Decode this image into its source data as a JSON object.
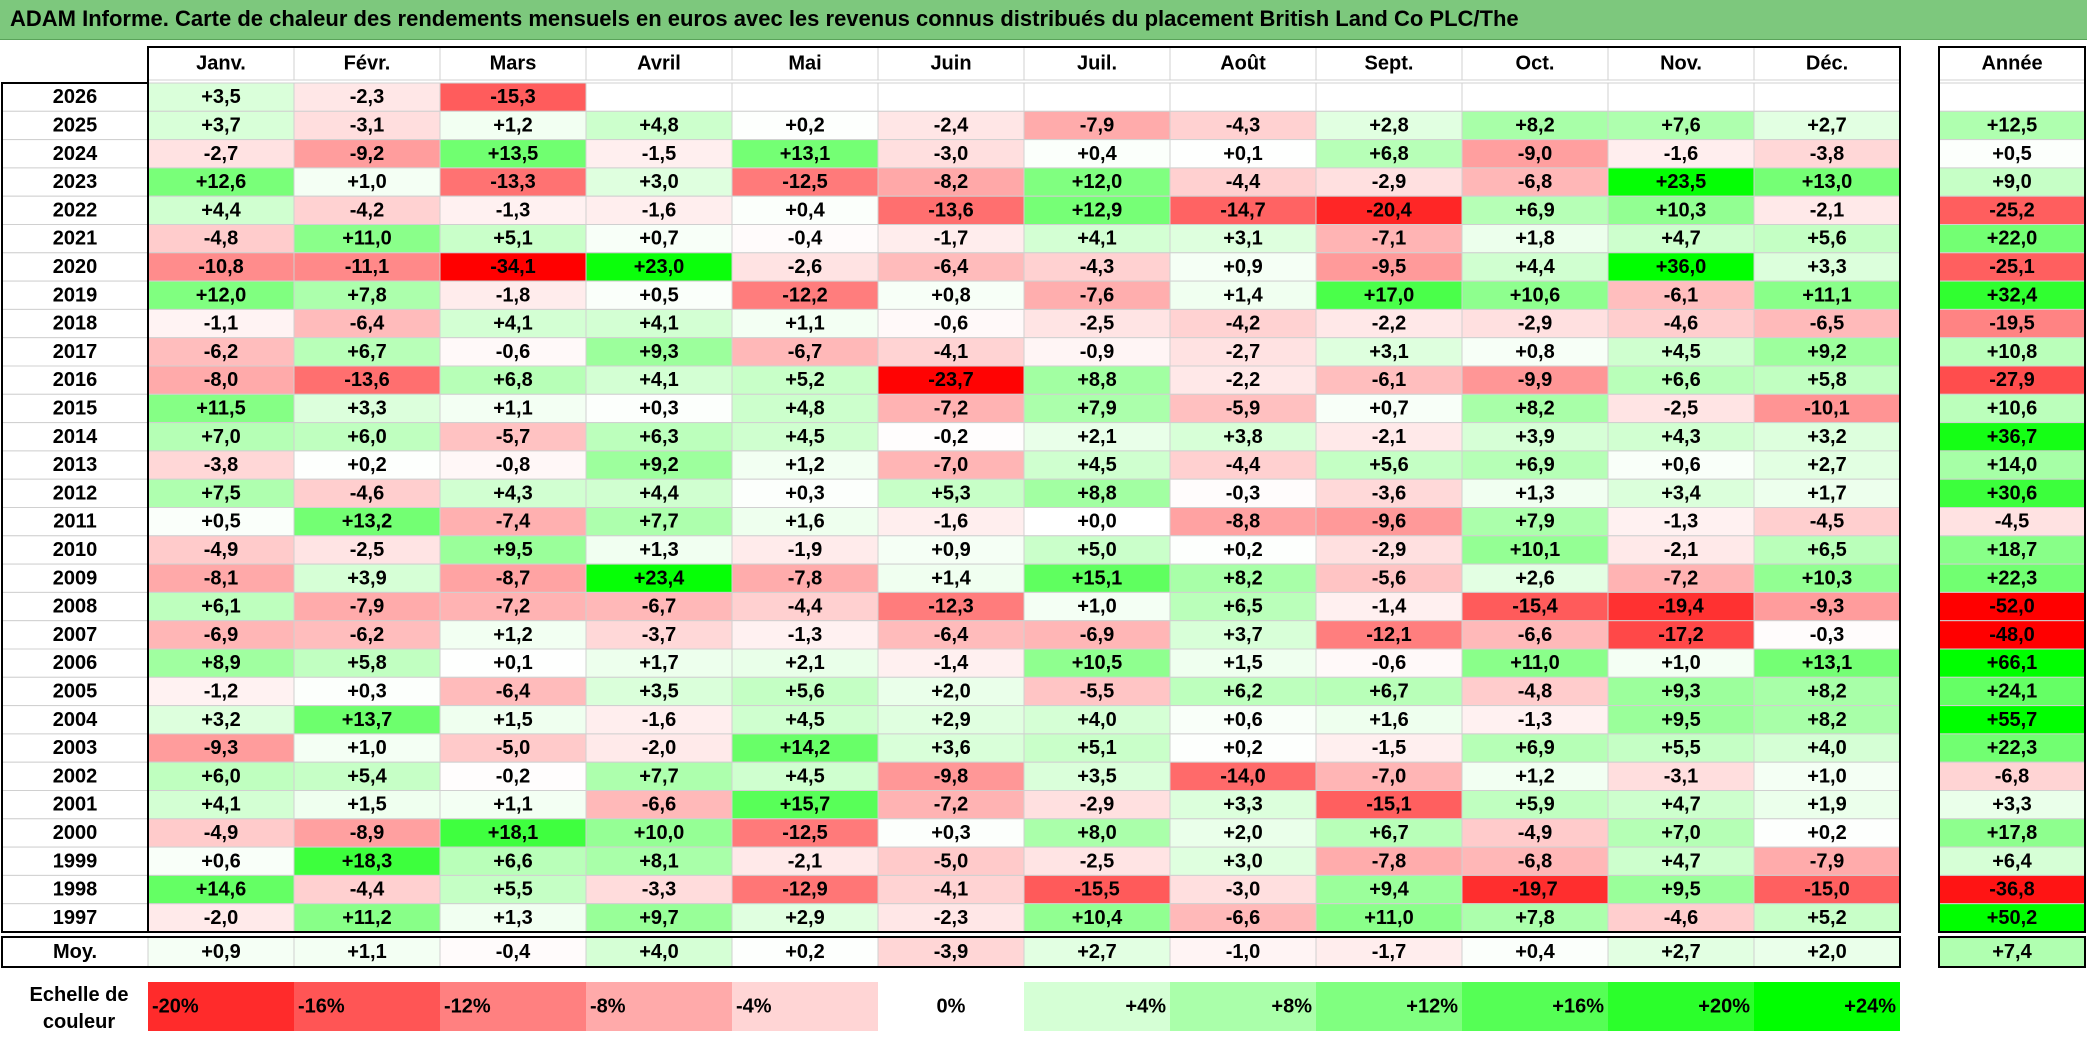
{
  "title": "ADAM Informe. Carte de chaleur des rendements mensuels en euros avec les revenus connus distribués du placement British Land Co PLC/The",
  "chart_data": {
    "type": "heatmap",
    "months": [
      "Janv.",
      "Févr.",
      "Mars",
      "Avril",
      "Mai",
      "Juin",
      "Juil.",
      "Août",
      "Sept.",
      "Oct.",
      "Nov.",
      "Déc."
    ],
    "year_header": "Année",
    "rows": [
      {
        "year": "2026",
        "values": [
          "+3,5",
          "-2,3",
          "-15,3",
          "",
          "",
          "",
          "",
          "",
          "",
          "",
          "",
          ""
        ],
        "annual": ""
      },
      {
        "year": "2025",
        "values": [
          "+3,7",
          "-3,1",
          "+1,2",
          "+4,8",
          "+0,2",
          "-2,4",
          "-7,9",
          "-4,3",
          "+2,8",
          "+8,2",
          "+7,6",
          "+2,7"
        ],
        "annual": "+12,5"
      },
      {
        "year": "2024",
        "values": [
          "-2,7",
          "-9,2",
          "+13,5",
          "-1,5",
          "+13,1",
          "-3,0",
          "+0,4",
          "+0,1",
          "+6,8",
          "-9,0",
          "-1,6",
          "-3,8"
        ],
        "annual": "+0,5"
      },
      {
        "year": "2023",
        "values": [
          "+12,6",
          "+1,0",
          "-13,3",
          "+3,0",
          "-12,5",
          "-8,2",
          "+12,0",
          "-4,4",
          "-2,9",
          "-6,8",
          "+23,5",
          "+13,0"
        ],
        "annual": "+9,0"
      },
      {
        "year": "2022",
        "values": [
          "+4,4",
          "-4,2",
          "-1,3",
          "-1,6",
          "+0,4",
          "-13,6",
          "+12,9",
          "-14,7",
          "-20,4",
          "+6,9",
          "+10,3",
          "-2,1"
        ],
        "annual": "-25,2"
      },
      {
        "year": "2021",
        "values": [
          "-4,8",
          "+11,0",
          "+5,1",
          "+0,7",
          "-0,4",
          "-1,7",
          "+4,1",
          "+3,1",
          "-7,1",
          "+1,8",
          "+4,7",
          "+5,6"
        ],
        "annual": "+22,0"
      },
      {
        "year": "2020",
        "values": [
          "-10,8",
          "-11,1",
          "-34,1",
          "+23,0",
          "-2,6",
          "-6,4",
          "-4,3",
          "+0,9",
          "-9,5",
          "+4,4",
          "+36,0",
          "+3,3"
        ],
        "annual": "-25,1"
      },
      {
        "year": "2019",
        "values": [
          "+12,0",
          "+7,8",
          "-1,8",
          "+0,5",
          "-12,2",
          "+0,8",
          "-7,6",
          "+1,4",
          "+17,0",
          "+10,6",
          "-6,1",
          "+11,1"
        ],
        "annual": "+32,4"
      },
      {
        "year": "2018",
        "values": [
          "-1,1",
          "-6,4",
          "+4,1",
          "+4,1",
          "+1,1",
          "-0,6",
          "-2,5",
          "-4,2",
          "-2,2",
          "-2,9",
          "-4,6",
          "-6,5"
        ],
        "annual": "-19,5"
      },
      {
        "year": "2017",
        "values": [
          "-6,2",
          "+6,7",
          "-0,6",
          "+9,3",
          "-6,7",
          "-4,1",
          "-0,9",
          "-2,7",
          "+3,1",
          "+0,8",
          "+4,5",
          "+9,2"
        ],
        "annual": "+10,8"
      },
      {
        "year": "2016",
        "values": [
          "-8,0",
          "-13,6",
          "+6,8",
          "+4,1",
          "+5,2",
          "-23,7",
          "+8,8",
          "-2,2",
          "-6,1",
          "-9,9",
          "+6,6",
          "+5,8"
        ],
        "annual": "-27,9"
      },
      {
        "year": "2015",
        "values": [
          "+11,5",
          "+3,3",
          "+1,1",
          "+0,3",
          "+4,8",
          "-7,2",
          "+7,9",
          "-5,9",
          "+0,7",
          "+8,2",
          "-2,5",
          "-10,1"
        ],
        "annual": "+10,6"
      },
      {
        "year": "2014",
        "values": [
          "+7,0",
          "+6,0",
          "-5,7",
          "+6,3",
          "+4,5",
          "-0,2",
          "+2,1",
          "+3,8",
          "-2,1",
          "+3,9",
          "+4,3",
          "+3,2"
        ],
        "annual": "+36,7"
      },
      {
        "year": "2013",
        "values": [
          "-3,8",
          "+0,2",
          "-0,8",
          "+9,2",
          "+1,2",
          "-7,0",
          "+4,5",
          "-4,4",
          "+5,6",
          "+6,9",
          "+0,6",
          "+2,7"
        ],
        "annual": "+14,0"
      },
      {
        "year": "2012",
        "values": [
          "+7,5",
          "-4,6",
          "+4,3",
          "+4,4",
          "+0,3",
          "+5,3",
          "+8,8",
          "-0,3",
          "-3,6",
          "+1,3",
          "+3,4",
          "+1,7"
        ],
        "annual": "+30,6"
      },
      {
        "year": "2011",
        "values": [
          "+0,5",
          "+13,2",
          "-7,4",
          "+7,7",
          "+1,6",
          "-1,6",
          "+0,0",
          "-8,8",
          "-9,6",
          "+7,9",
          "-1,3",
          "-4,5"
        ],
        "annual": "-4,5"
      },
      {
        "year": "2010",
        "values": [
          "-4,9",
          "-2,5",
          "+9,5",
          "+1,3",
          "-1,9",
          "+0,9",
          "+5,0",
          "+0,2",
          "-2,9",
          "+10,1",
          "-2,1",
          "+6,5"
        ],
        "annual": "+18,7"
      },
      {
        "year": "2009",
        "values": [
          "-8,1",
          "+3,9",
          "-8,7",
          "+23,4",
          "-7,8",
          "+1,4",
          "+15,1",
          "+8,2",
          "-5,6",
          "+2,6",
          "-7,2",
          "+10,3"
        ],
        "annual": "+22,3"
      },
      {
        "year": "2008",
        "values": [
          "+6,1",
          "-7,9",
          "-7,2",
          "-6,7",
          "-4,4",
          "-12,3",
          "+1,0",
          "+6,5",
          "-1,4",
          "-15,4",
          "-19,4",
          "-9,3"
        ],
        "annual": "-52,0"
      },
      {
        "year": "2007",
        "values": [
          "-6,9",
          "-6,2",
          "+1,2",
          "-3,7",
          "-1,3",
          "-6,4",
          "-6,9",
          "+3,7",
          "-12,1",
          "-6,6",
          "-17,2",
          "-0,3"
        ],
        "annual": "-48,0"
      },
      {
        "year": "2006",
        "values": [
          "+8,9",
          "+5,8",
          "+0,1",
          "+1,7",
          "+2,1",
          "-1,4",
          "+10,5",
          "+1,5",
          "-0,6",
          "+11,0",
          "+1,0",
          "+13,1"
        ],
        "annual": "+66,1"
      },
      {
        "year": "2005",
        "values": [
          "-1,2",
          "+0,3",
          "-6,4",
          "+3,5",
          "+5,6",
          "+2,0",
          "-5,5",
          "+6,2",
          "+6,7",
          "-4,8",
          "+9,3",
          "+8,2"
        ],
        "annual": "+24,1"
      },
      {
        "year": "2004",
        "values": [
          "+3,2",
          "+13,7",
          "+1,5",
          "-1,6",
          "+4,5",
          "+2,9",
          "+4,0",
          "+0,6",
          "+1,6",
          "-1,3",
          "+9,5",
          "+8,2"
        ],
        "annual": "+55,7"
      },
      {
        "year": "2003",
        "values": [
          "-9,3",
          "+1,0",
          "-5,0",
          "-2,0",
          "+14,2",
          "+3,6",
          "+5,1",
          "+0,2",
          "-1,5",
          "+6,9",
          "+5,5",
          "+4,0"
        ],
        "annual": "+22,3"
      },
      {
        "year": "2002",
        "values": [
          "+6,0",
          "+5,4",
          "-0,2",
          "+7,7",
          "+4,5",
          "-9,8",
          "+3,5",
          "-14,0",
          "-7,0",
          "+1,2",
          "-3,1",
          "+1,0"
        ],
        "annual": "-6,8"
      },
      {
        "year": "2001",
        "values": [
          "+4,1",
          "+1,5",
          "+1,1",
          "-6,6",
          "+15,7",
          "-7,2",
          "-2,9",
          "+3,3",
          "-15,1",
          "+5,9",
          "+4,7",
          "+1,9"
        ],
        "annual": "+3,3"
      },
      {
        "year": "2000",
        "values": [
          "-4,9",
          "-8,9",
          "+18,1",
          "+10,0",
          "-12,5",
          "+0,3",
          "+8,0",
          "+2,0",
          "+6,7",
          "-4,9",
          "+7,0",
          "+0,2"
        ],
        "annual": "+17,8"
      },
      {
        "year": "1999",
        "values": [
          "+0,6",
          "+18,3",
          "+6,6",
          "+8,1",
          "-2,1",
          "-5,0",
          "-2,5",
          "+3,0",
          "-7,8",
          "-6,8",
          "+4,7",
          "-7,9"
        ],
        "annual": "+6,4"
      },
      {
        "year": "1998",
        "values": [
          "+14,6",
          "-4,4",
          "+5,5",
          "-3,3",
          "-12,9",
          "-4,1",
          "-15,5",
          "-3,0",
          "+9,4",
          "-19,7",
          "+9,5",
          "-15,0"
        ],
        "annual": "-36,8"
      },
      {
        "year": "1997",
        "values": [
          "-2,0",
          "+11,2",
          "+1,3",
          "+9,7",
          "+2,9",
          "-2,3",
          "+10,4",
          "-6,6",
          "+11,0",
          "+7,8",
          "-4,6",
          "+5,2"
        ],
        "annual": "+50,2"
      }
    ],
    "average_row": {
      "label": "Moy.",
      "values": [
        "+0,9",
        "+1,1",
        "-0,4",
        "+4,0",
        "+0,2",
        "-3,9",
        "+2,7",
        "-1,0",
        "-1,7",
        "+0,4",
        "+2,7",
        "+2,0"
      ],
      "annual": "+7,4"
    },
    "scale": {
      "label_line1": "Echelle de",
      "label_line2": "couleur",
      "stops": [
        {
          "label": "-20%",
          "value": -20
        },
        {
          "label": "-16%",
          "value": -16
        },
        {
          "label": "-12%",
          "value": -12
        },
        {
          "label": "-8%",
          "value": -8
        },
        {
          "label": "-4%",
          "value": -4
        },
        {
          "label": "0%",
          "value": 0
        },
        {
          "label": "+4%",
          "value": 4
        },
        {
          "label": "+8%",
          "value": 8
        },
        {
          "label": "+12%",
          "value": 12
        },
        {
          "label": "+16%",
          "value": 16
        },
        {
          "label": "+20%",
          "value": 20
        },
        {
          "label": "+24%",
          "value": 24
        }
      ]
    },
    "colors": {
      "negative_max": "#ff0000",
      "neutral": "#ffffff",
      "positive_max": "#00ff00",
      "title_bar": "#7dc87d"
    }
  }
}
